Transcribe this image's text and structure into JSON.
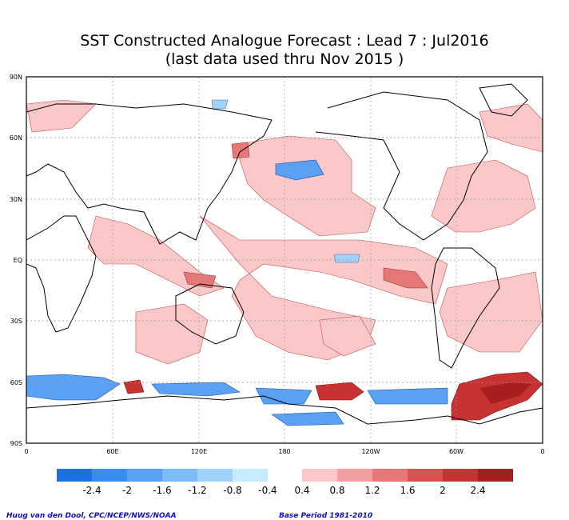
{
  "title_line1": "SST Constructed Analogue Forecast : Lead 7 : Jul2016",
  "title_line2": "(last data used thru Nov 2015 )",
  "lat_labels": [
    "90N",
    "60N",
    "30N",
    "EQ",
    "30S",
    "60S",
    "90S"
  ],
  "lon_labels": [
    "0",
    "60E",
    "120E",
    "180",
    "120W",
    "60W",
    "0"
  ],
  "colorbar": {
    "negative_colors": [
      "#1e6ee6",
      "#3c8cf0",
      "#5aa0f5",
      "#7dbaf8",
      "#a0d2fa",
      "#c8ecff"
    ],
    "positive_colors": [
      "#fac8c8",
      "#f0a0a0",
      "#e67878",
      "#dc5050",
      "#c83232",
      "#a81e1e"
    ],
    "negative_labels": [
      "-2.4",
      "-2",
      "-1.6",
      "-1.2",
      "-0.8",
      "-0.4"
    ],
    "positive_labels": [
      "0.4",
      "0.8",
      "1.2",
      "1.6",
      "2",
      "2.4"
    ]
  },
  "credit_left": "Huug van den Dool, CPC/NCEP/NWS/NOAA",
  "credit_right": "Base Period 1981-2010"
}
